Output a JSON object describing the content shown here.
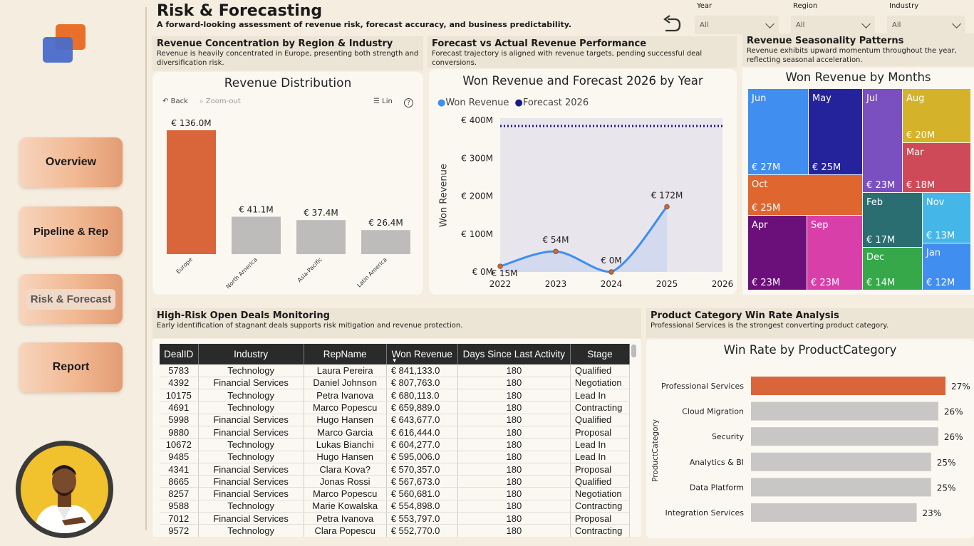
{
  "nav": {
    "items": [
      "Overview",
      "Pipeline & Rep",
      "Risk & Forecast",
      "Report"
    ]
  },
  "header": {
    "title": "Risk & Forecasting",
    "subtitle": "A forward-looking assessment of revenue risk, forecast accuracy, and business predictability."
  },
  "filters": [
    {
      "label": "Year",
      "value": "All"
    },
    {
      "label": "Region",
      "value": "All"
    },
    {
      "label": "Industry",
      "value": "All"
    }
  ],
  "sections": {
    "region": {
      "heading": "Revenue Concentration by Region & Industry",
      "desc": "Revenue is heavily concentrated in Europe, presenting both strength and diversification risk."
    },
    "forecast": {
      "heading": "Forecast vs Actual Revenue Performance",
      "desc": "Forecast trajectory is aligned with revenue targets, pending successful deal conversions."
    },
    "season": {
      "heading": "Revenue Seasonality Patterns",
      "desc": "Revenue exhibits upward momentum throughout the year, reflecting seasonal acceleration."
    },
    "deals": {
      "heading": "High-Risk Open Deals Monitoring",
      "desc": "Early identification of stagnant deals supports risk mitigation and revenue protection."
    },
    "category": {
      "heading": "Product Category Win Rate Analysis",
      "desc": "Professional Services is the strongest converting product category."
    }
  },
  "bar_toolbar": {
    "back": "Back",
    "zoom": "Zoom-out",
    "scale": "Lin",
    "help": "?"
  },
  "chart_data": [
    {
      "type": "bar",
      "title": "Revenue Distribution",
      "categories": [
        "Europe",
        "North America",
        "Asia-Pacific",
        "Latin America"
      ],
      "values": [
        136.0,
        41.1,
        37.4,
        26.4
      ],
      "labels": [
        "€ 136.0M",
        "€ 41.1M",
        "€ 37.4M",
        "€ 26.4M"
      ],
      "colors": [
        "#d9663a",
        "#bdbcbb",
        "#bdbcbb",
        "#bdbcbb"
      ],
      "ylim": [
        0,
        136
      ]
    },
    {
      "type": "line",
      "title": "Won Revenue and Forecast 2026 by Year",
      "ylabel": "Won Revenue",
      "x": [
        2022,
        2023,
        2024,
        2025,
        2026
      ],
      "yticks": [
        "€ 0M",
        "€ 100M",
        "€ 200M",
        "€ 300M",
        "€ 400M"
      ],
      "ylim": [
        0,
        400
      ],
      "series": [
        {
          "name": "Won Revenue",
          "color": "#3f8ef0",
          "x": [
            2022,
            2023,
            2024,
            2025
          ],
          "values": [
            15,
            54,
            0,
            172
          ],
          "labels": [
            "€ 15M",
            "€ 54M",
            "€ 0M",
            "€ 172M"
          ]
        },
        {
          "name": "Forecast 2026",
          "color": "#1a1a8a",
          "x": [
            2022,
            2026
          ],
          "values": [
            385,
            385
          ]
        }
      ]
    },
    {
      "type": "treemap",
      "title": "Won Revenue by Months",
      "items": [
        {
          "label": "Jun",
          "value": "€ 27M",
          "color": "#3f8ef0"
        },
        {
          "label": "May",
          "value": "€ 25M",
          "color": "#24239b"
        },
        {
          "label": "Jul",
          "value": "€ 23M",
          "color": "#7a4fbf"
        },
        {
          "label": "Aug",
          "value": "€ 20M",
          "color": "#d4b22a"
        },
        {
          "label": "Mar",
          "value": "€ 18M",
          "color": "#cf4a58"
        },
        {
          "label": "Oct",
          "value": "€ 25M",
          "color": "#e0662f"
        },
        {
          "label": "Feb",
          "value": "€ 17M",
          "color": "#2a6e72"
        },
        {
          "label": "Nov",
          "value": "€ 13M",
          "color": "#45b6e8"
        },
        {
          "label": "Apr",
          "value": "€ 23M",
          "color": "#6b0f7a"
        },
        {
          "label": "Sep",
          "value": "€ 23M",
          "color": "#d83fa8"
        },
        {
          "label": "Dec",
          "value": "€ 14M",
          "color": "#36a84a"
        },
        {
          "label": "Jan",
          "value": "€ 12M",
          "color": "#3f8ef0"
        }
      ]
    },
    {
      "type": "bar",
      "orientation": "horizontal",
      "title": "Win Rate by ProductCategory",
      "ylabel": "ProductCategory",
      "categories": [
        "Professional Services",
        "Cloud Migration",
        "Security",
        "Analytics & BI",
        "Data Platform",
        "Integration Services"
      ],
      "values": [
        27,
        26,
        26,
        25,
        25,
        23
      ],
      "labels": [
        "27%",
        "26%",
        "26%",
        "25%",
        "25%",
        "23%"
      ],
      "colors": [
        "#d9663a",
        "#c8c7c5",
        "#c8c7c5",
        "#c8c7c5",
        "#c8c7c5",
        "#c8c7c5"
      ],
      "xlim": [
        0,
        27
      ]
    }
  ],
  "deals_table": {
    "columns": [
      "DealID",
      "Industry",
      "RepName",
      "Won Revenue",
      "Days Since Last Activity",
      "Stage"
    ],
    "rows": [
      [
        "5783",
        "Technology",
        "Laura Pereira",
        "€ 841,133.0",
        "180",
        "Qualified"
      ],
      [
        "4392",
        "Financial Services",
        "Daniel Johnson",
        "€ 807,763.0",
        "180",
        "Negotiation"
      ],
      [
        "10175",
        "Technology",
        "Petra Ivanova",
        "€ 680,113.0",
        "180",
        "Lead In"
      ],
      [
        "4691",
        "Technology",
        "Marco Popescu",
        "€ 659,889.0",
        "180",
        "Contracting"
      ],
      [
        "5998",
        "Financial Services",
        "Hugo Hansen",
        "€ 643,677.0",
        "180",
        "Qualified"
      ],
      [
        "9880",
        "Financial Services",
        "Marco Garcia",
        "€ 616,444.0",
        "180",
        "Proposal"
      ],
      [
        "10672",
        "Technology",
        "Lukas Bianchi",
        "€ 604,277.0",
        "180",
        "Lead In"
      ],
      [
        "9485",
        "Technology",
        "Hugo Hansen",
        "€ 595,006.0",
        "180",
        "Lead In"
      ],
      [
        "4341",
        "Financial Services",
        "Clara Kova?",
        "€ 570,357.0",
        "180",
        "Proposal"
      ],
      [
        "8665",
        "Financial Services",
        "Jonas Rossi",
        "€ 567,673.0",
        "180",
        "Qualified"
      ],
      [
        "8257",
        "Financial Services",
        "Marco Popescu",
        "€ 560,681.0",
        "180",
        "Negotiation"
      ],
      [
        "9588",
        "Technology",
        "Marie Kowalska",
        "€ 554,898.0",
        "180",
        "Contracting"
      ],
      [
        "7012",
        "Financial Services",
        "Petra Ivanova",
        "€ 553,797.0",
        "180",
        "Proposal"
      ],
      [
        "9572",
        "Technology",
        "Clara Popescu",
        "€ 552,770.0",
        "180",
        "Contracting"
      ]
    ]
  }
}
